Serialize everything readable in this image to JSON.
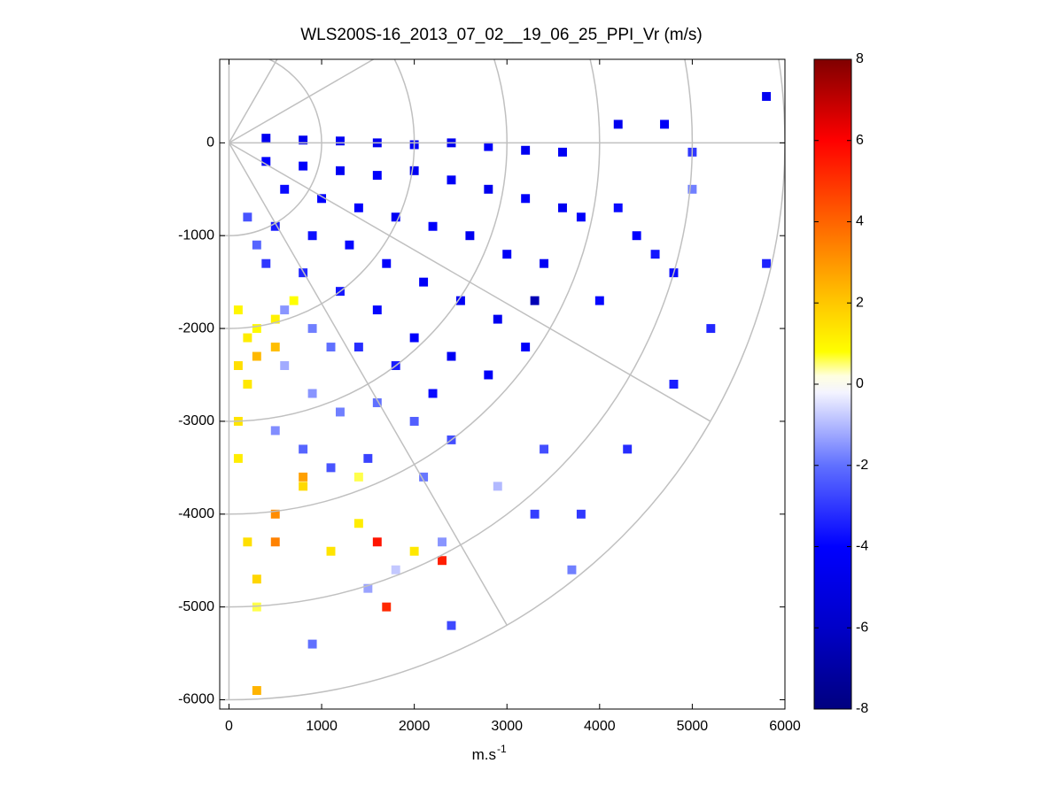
{
  "chart_data": {
    "type": "ppi",
    "title": "WLS200S-16_2013_07_02__19_06_25_PPI_Vr (m/s)",
    "xlabel": "m.s",
    "xlabel_sup": "-1",
    "xlim": [
      -100,
      6000
    ],
    "ylim": [
      -6100,
      900
    ],
    "xticks": [
      0,
      1000,
      2000,
      3000,
      4000,
      5000,
      6000
    ],
    "yticks": [
      -6000,
      -5000,
      -4000,
      -3000,
      -2000,
      -1000,
      0
    ],
    "clim": [
      -8,
      8
    ],
    "cticks": [
      -8,
      -6,
      -4,
      -2,
      0,
      2,
      4,
      6,
      8
    ],
    "colormap": [
      {
        "value": -8,
        "color": "#00007f"
      },
      {
        "value": -6,
        "color": "#0000c8"
      },
      {
        "value": -4,
        "color": "#0000ff"
      },
      {
        "value": -2,
        "color": "#6070ff"
      },
      {
        "value": -0.2,
        "color": "#f4f4ff"
      },
      {
        "value": 0.2,
        "color": "#ffffe0"
      },
      {
        "value": 0.8,
        "color": "#ffff00"
      },
      {
        "value": 2,
        "color": "#ffc800"
      },
      {
        "value": 4,
        "color": "#ff6400"
      },
      {
        "value": 6,
        "color": "#ff0000"
      },
      {
        "value": 8,
        "color": "#800000"
      }
    ],
    "polar_rings": [
      1000,
      2000,
      3000,
      4000,
      5000,
      6000
    ],
    "polar_rays": [
      90,
      60,
      30,
      0,
      -30,
      -60,
      -90
    ],
    "grid_color": "#c0c0c0",
    "cells": [
      [
        400,
        50,
        -4.5
      ],
      [
        800,
        30,
        -4.6
      ],
      [
        1200,
        20,
        -4.4
      ],
      [
        1600,
        0,
        -4.5
      ],
      [
        2000,
        -20,
        -4.3
      ],
      [
        2400,
        0,
        -4.6
      ],
      [
        2800,
        -40,
        -4.2
      ],
      [
        3200,
        -80,
        -4.5
      ],
      [
        3600,
        -100,
        -4.4
      ],
      [
        400,
        -200,
        -4.0
      ],
      [
        800,
        -250,
        -4.2
      ],
      [
        1200,
        -300,
        -4.4
      ],
      [
        1600,
        -350,
        -4.1
      ],
      [
        2000,
        -300,
        -4.5
      ],
      [
        2400,
        -400,
        -4.3
      ],
      [
        2800,
        -500,
        -4.6
      ],
      [
        3200,
        -600,
        -4.2
      ],
      [
        3600,
        -700,
        -4.5
      ],
      [
        600,
        -500,
        -3.8
      ],
      [
        1000,
        -600,
        -4.0
      ],
      [
        1400,
        -700,
        -4.1
      ],
      [
        1800,
        -800,
        -4.4
      ],
      [
        2200,
        -900,
        -4.2
      ],
      [
        2600,
        -1000,
        -4.5
      ],
      [
        3000,
        -1200,
        -4.3
      ],
      [
        3400,
        -1300,
        -4.4
      ],
      [
        3800,
        -800,
        -4.2
      ],
      [
        500,
        -900,
        -3.5
      ],
      [
        900,
        -1000,
        -3.7
      ],
      [
        1300,
        -1100,
        -3.9
      ],
      [
        1700,
        -1300,
        -4.1
      ],
      [
        2100,
        -1500,
        -4.3
      ],
      [
        2500,
        -1700,
        -4.4
      ],
      [
        2900,
        -1900,
        -4.5
      ],
      [
        3200,
        -2200,
        -4.2
      ],
      [
        400,
        -1300,
        -3.0
      ],
      [
        800,
        -1400,
        -3.3
      ],
      [
        1200,
        -1600,
        -3.6
      ],
      [
        1600,
        -1800,
        -3.9
      ],
      [
        2000,
        -2100,
        -4.1
      ],
      [
        2400,
        -2300,
        -4.4
      ],
      [
        2800,
        -2500,
        -4.3
      ],
      [
        1400,
        -2200,
        -3.2
      ],
      [
        1800,
        -2400,
        -3.5
      ],
      [
        2200,
        -2700,
        -3.8
      ],
      [
        3300,
        -1700,
        -6.5
      ],
      [
        200,
        -800,
        -2.5
      ],
      [
        300,
        -1100,
        -2.2
      ],
      [
        600,
        -1800,
        -1.5
      ],
      [
        900,
        -2000,
        -1.8
      ],
      [
        1100,
        -2200,
        -2.0
      ],
      [
        600,
        -2400,
        -1.2
      ],
      [
        900,
        -2700,
        -1.5
      ],
      [
        1200,
        -2900,
        -1.8
      ],
      [
        500,
        -3100,
        -1.6
      ],
      [
        800,
        -3300,
        -2.2
      ],
      [
        1100,
        -3500,
        -2.5
      ],
      [
        1600,
        -2800,
        -2.0
      ],
      [
        2000,
        -3000,
        -2.3
      ],
      [
        2400,
        -3200,
        -2.6
      ],
      [
        1500,
        -3400,
        -2.8
      ],
      [
        2100,
        -3600,
        -1.9
      ],
      [
        2900,
        -3700,
        -1.0
      ],
      [
        3400,
        -3300,
        -2.6
      ],
      [
        3800,
        -4000,
        -3.0
      ],
      [
        4300,
        -3300,
        -3.2
      ],
      [
        4800,
        -2600,
        -3.5
      ],
      [
        5800,
        -1300,
        -3.4
      ],
      [
        5000,
        -500,
        -1.8
      ],
      [
        4600,
        -1200,
        -3.6
      ],
      [
        4200,
        -700,
        -3.8
      ],
      [
        4000,
        -1700,
        -3.9
      ],
      [
        1500,
        -4800,
        -1.3
      ],
      [
        900,
        -5400,
        -2.0
      ],
      [
        2400,
        -5200,
        -2.7
      ],
      [
        3700,
        -4600,
        -1.8
      ],
      [
        3300,
        -4000,
        -2.9
      ],
      [
        2300,
        -4300,
        -1.5
      ],
      [
        1800,
        -4600,
        -0.8
      ],
      [
        4200,
        200,
        -4.6
      ],
      [
        4700,
        200,
        -4.3
      ],
      [
        5000,
        -100,
        -3.0
      ],
      [
        5800,
        500,
        -4.5
      ],
      [
        4400,
        -1000,
        -4.0
      ],
      [
        4800,
        -1400,
        -3.8
      ],
      [
        5200,
        -2000,
        -3.3
      ],
      [
        100,
        -1800,
        1.0
      ],
      [
        200,
        -2100,
        1.2
      ],
      [
        100,
        -2400,
        1.5
      ],
      [
        300,
        -2000,
        0.9
      ],
      [
        500,
        -1900,
        1.1
      ],
      [
        700,
        -1700,
        0.8
      ],
      [
        200,
        -2600,
        1.3
      ],
      [
        100,
        -3000,
        1.4
      ],
      [
        100,
        -3400,
        1.2
      ],
      [
        800,
        -3700,
        1.6
      ],
      [
        1400,
        -3600,
        0.6
      ],
      [
        1400,
        -4100,
        1.2
      ],
      [
        1100,
        -4400,
        1.4
      ],
      [
        2000,
        -4400,
        1.3
      ],
      [
        200,
        -4300,
        1.5
      ],
      [
        300,
        -4700,
        1.7
      ],
      [
        300,
        -5000,
        0.6
      ],
      [
        300,
        -2300,
        2.3
      ],
      [
        500,
        -2200,
        2.2
      ],
      [
        800,
        -3600,
        2.8
      ],
      [
        500,
        -4000,
        3.2
      ],
      [
        500,
        -4300,
        3.4
      ],
      [
        300,
        -5900,
        2.4
      ],
      [
        1600,
        -4300,
        5.6
      ],
      [
        1700,
        -5000,
        5.2
      ],
      [
        2300,
        -4500,
        5.4
      ]
    ]
  }
}
